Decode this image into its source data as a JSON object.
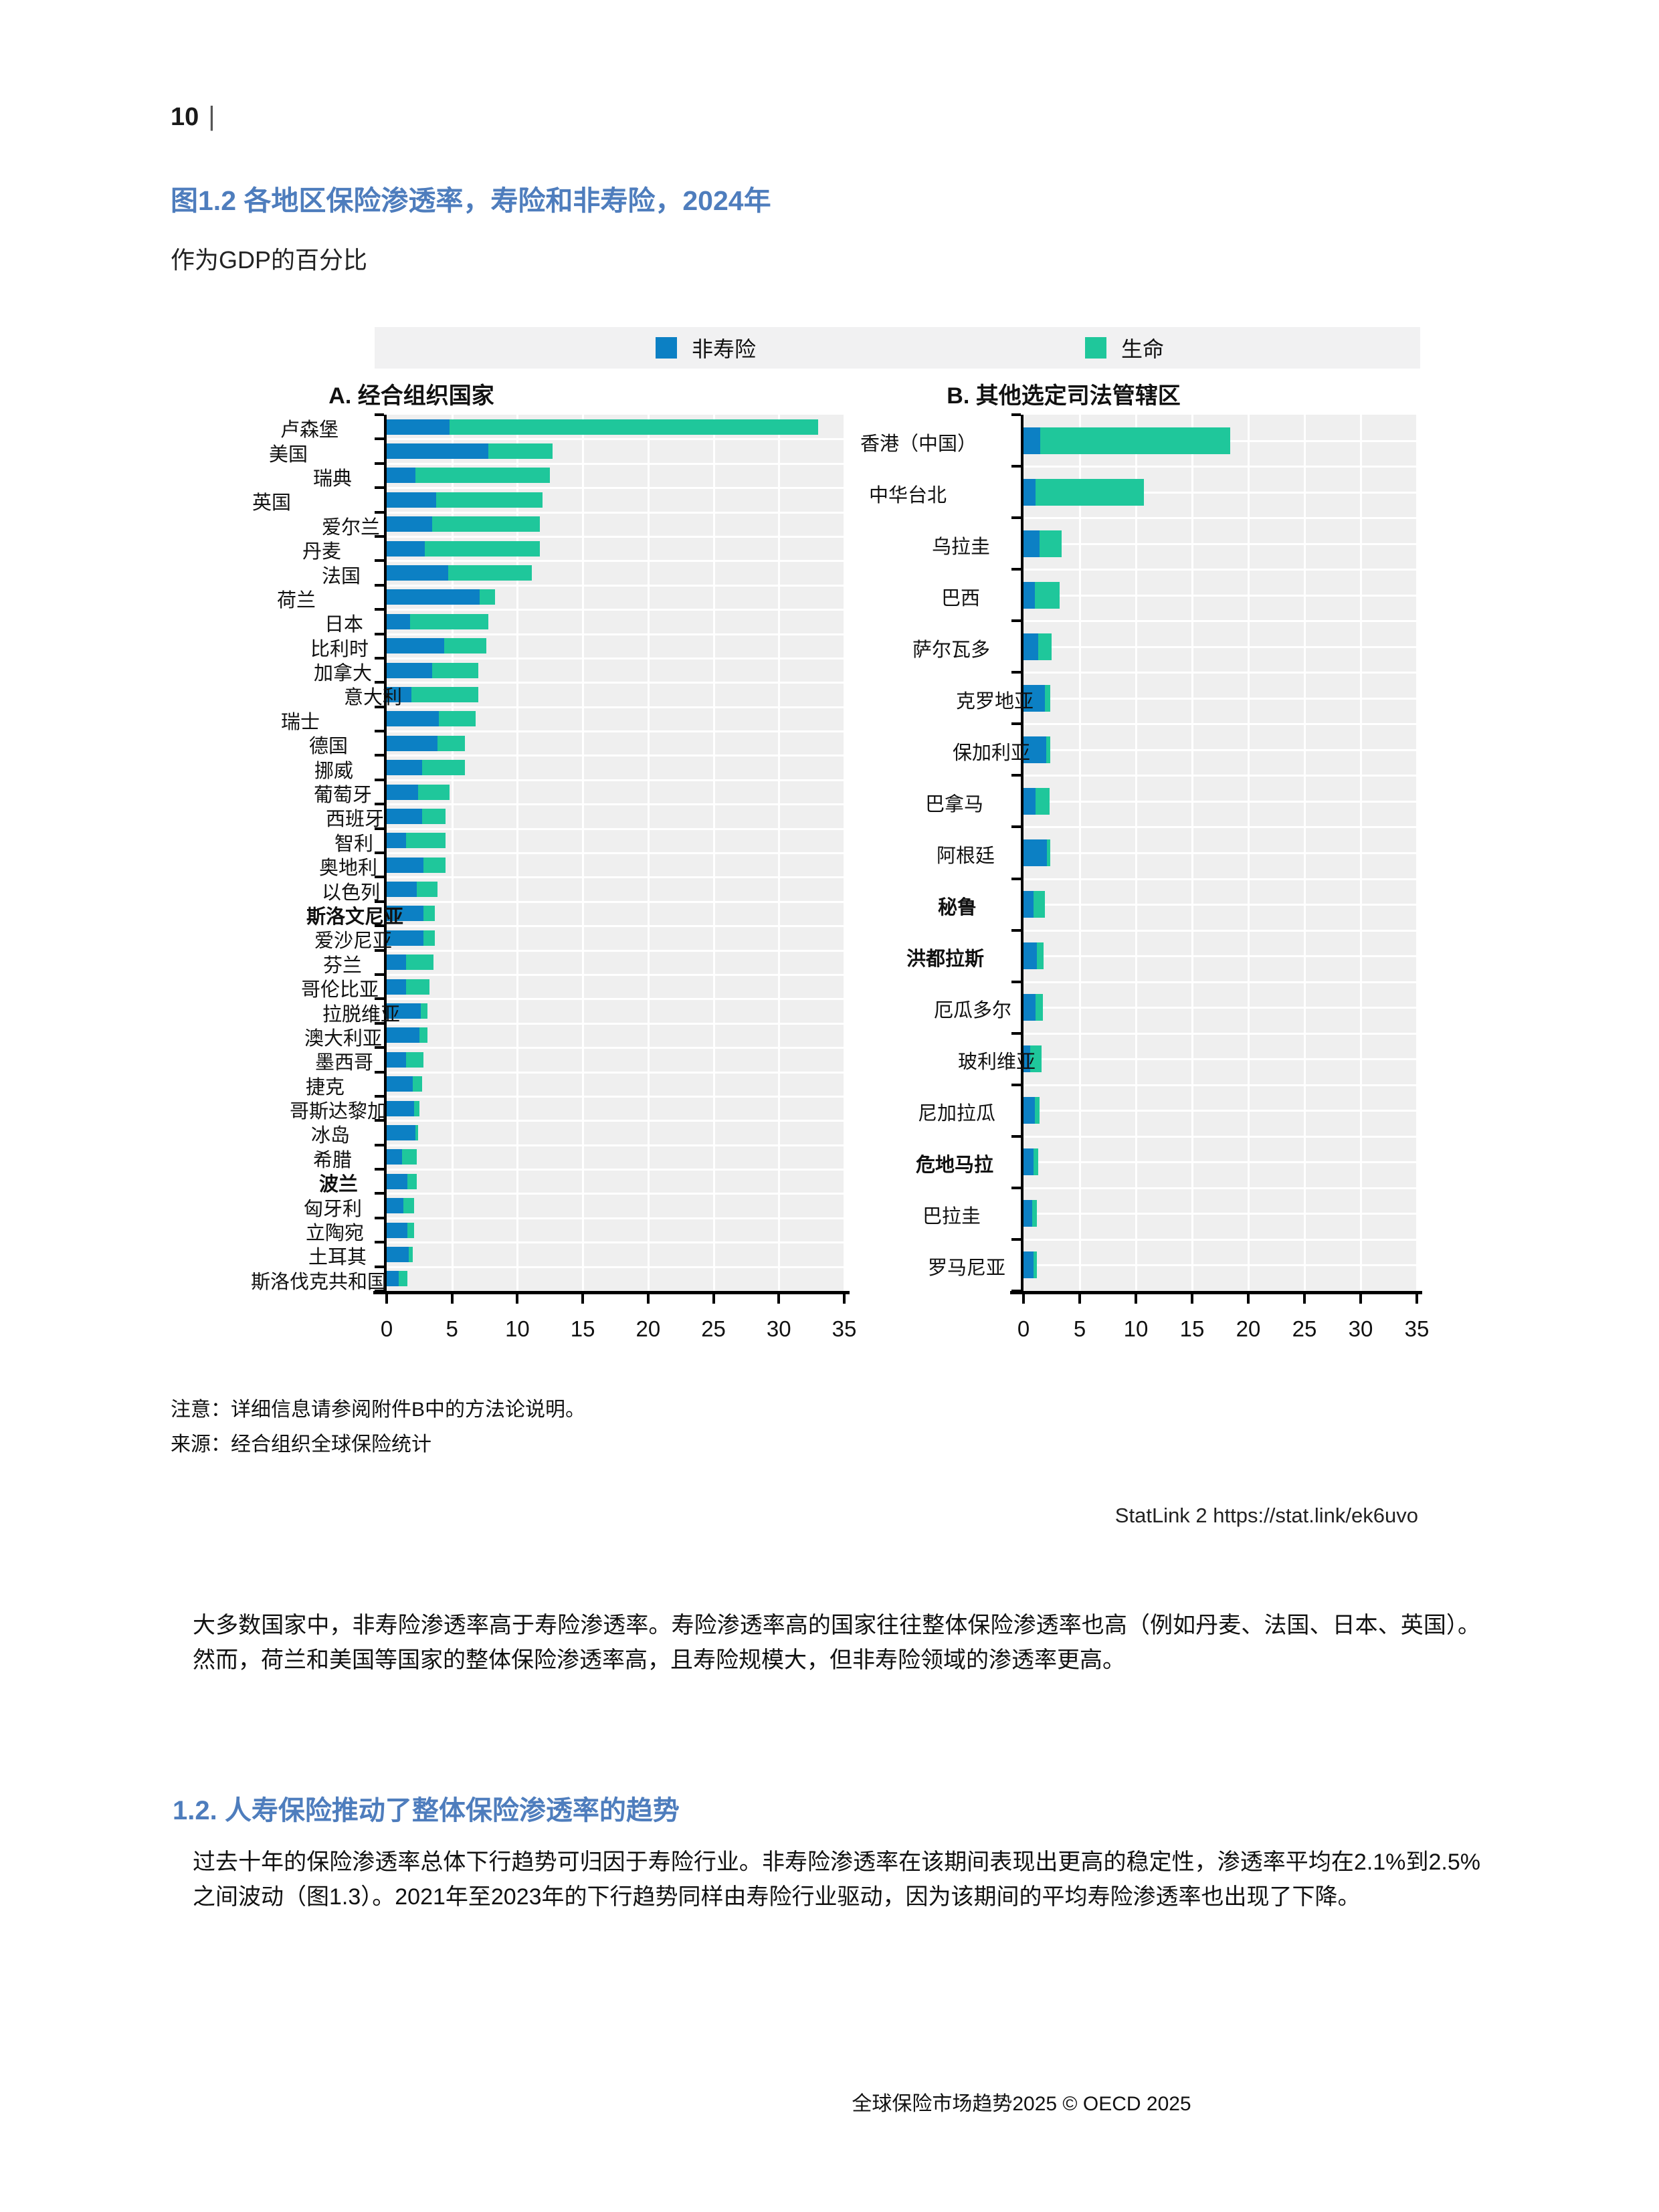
{
  "page": {
    "number": "10",
    "separator": "|"
  },
  "figure": {
    "title": "图1.2 各地区保险渗透率，寿险和非寿险，2024年",
    "subtitle": "作为GDP的百分比"
  },
  "legend": {
    "nonlife_label": "非寿险",
    "life_label": "生命",
    "nonlife_color": "#0c80c4",
    "life_color": "#1fc79b"
  },
  "chart_data": [
    {
      "type": "bar",
      "orientation": "horizontal",
      "stacked": true,
      "title": "A. 经合组织国家",
      "xlim": [
        0,
        35
      ],
      "xticks": [
        "0",
        "5",
        "10",
        "15",
        "20",
        "25",
        "30",
        "35"
      ],
      "legend_position": "top",
      "grid": true,
      "categories": [
        "卢森堡",
        "美国",
        "瑞典",
        "英国",
        "爱尔兰",
        "丹麦",
        "法国",
        "荷兰",
        "日本",
        "比利时",
        "加拿大",
        "意大利",
        "瑞士",
        "德国",
        "挪威",
        "葡萄牙",
        "西班牙",
        "智利",
        "奥地利",
        "以色列",
        "斯洛文尼亚",
        "爱沙尼亚",
        "芬兰",
        "哥伦比亚",
        "拉脱维亚",
        "澳大利亚",
        "墨西哥",
        "捷克",
        "哥斯达黎加",
        "冰岛",
        "希腊",
        "波兰",
        "匈牙利",
        "立陶宛",
        "土耳其",
        "斯洛伐克共和国"
      ],
      "series": [
        {
          "name": "非寿险",
          "color": "#0c80c4",
          "values": [
            4.8,
            7.8,
            2.2,
            3.8,
            3.5,
            2.9,
            4.7,
            7.1,
            1.8,
            4.4,
            3.5,
            1.9,
            4.0,
            3.9,
            2.7,
            2.4,
            2.7,
            1.5,
            2.8,
            2.3,
            2.8,
            2.8,
            1.5,
            1.5,
            2.6,
            2.5,
            1.5,
            2.0,
            2.1,
            2.2,
            1.2,
            1.6,
            1.3,
            1.6,
            1.7,
            0.9
          ]
        },
        {
          "name": "生命",
          "color": "#1fc79b",
          "values": [
            28.2,
            4.9,
            10.3,
            8.1,
            8.2,
            8.8,
            6.4,
            1.2,
            6.0,
            3.2,
            3.5,
            5.1,
            2.8,
            2.1,
            3.3,
            2.4,
            1.8,
            3.0,
            1.7,
            1.6,
            0.9,
            0.9,
            2.1,
            1.8,
            0.5,
            0.6,
            1.3,
            0.7,
            0.4,
            0.2,
            1.1,
            0.7,
            0.8,
            0.5,
            0.3,
            0.7
          ]
        }
      ]
    },
    {
      "type": "bar",
      "orientation": "horizontal",
      "stacked": true,
      "title": "B. 其他选定司法管辖区",
      "xlim": [
        0,
        35
      ],
      "xticks": [
        "0",
        "5",
        "10",
        "15",
        "20",
        "25",
        "30",
        "35"
      ],
      "legend_position": "top",
      "grid": true,
      "categories": [
        "香港（中国）",
        "中华台北",
        "乌拉圭",
        "巴西",
        "萨尔瓦多",
        "克罗地亚",
        "保加利亚",
        "巴拿马",
        "阿根廷",
        "秘鲁",
        "洪都拉斯",
        "厄瓜多尔",
        "玻利维亚",
        "尼加拉瓜",
        "危地马拉",
        "巴拉圭",
        "罗马尼亚"
      ],
      "series": [
        {
          "name": "非寿险",
          "color": "#0c80c4",
          "values": [
            1.5,
            1.1,
            1.4,
            1.0,
            1.3,
            1.9,
            2.0,
            1.1,
            2.1,
            0.9,
            1.2,
            1.1,
            0.6,
            1.0,
            0.9,
            0.8,
            0.9
          ]
        },
        {
          "name": "生命",
          "color": "#1fc79b",
          "values": [
            16.9,
            9.6,
            2.0,
            2.2,
            1.2,
            0.5,
            0.4,
            1.2,
            0.3,
            1.0,
            0.6,
            0.6,
            1.0,
            0.4,
            0.4,
            0.4,
            0.3
          ]
        }
      ]
    }
  ],
  "notes": {
    "line1": "注意：详细信息请参阅附件B中的方法论说明。",
    "line2": "来源：经合组织全球保险统计"
  },
  "statlink": "StatLink 2 https://stat.link/ek6uvo",
  "paragraph1": "大多数国家中，非寿险渗透率高于寿险渗透率。寿险渗透率高的国家往往整体保险渗透率也高（例如丹麦、法国、日本、英国）。然而，荷兰和美国等国家的整体保险渗透率高，且寿险规模大，但非寿险领域的渗透率更高。",
  "section_heading": "1.2. 人寿保险推动了整体保险渗透率的趋势",
  "paragraph2": "过去十年的保险渗透率总体下行趋势可归因于寿险行业。非寿险渗透率在该期间表现出更高的稳定性，渗透率平均在2.1%到2.5%之间波动（图1.3）。2021年至2023年的下行趋势同样由寿险行业驱动，因为该期间的平均寿险渗透率也出现了下降。",
  "footer": "全球保险市场趋势2025 © OECD 2025"
}
